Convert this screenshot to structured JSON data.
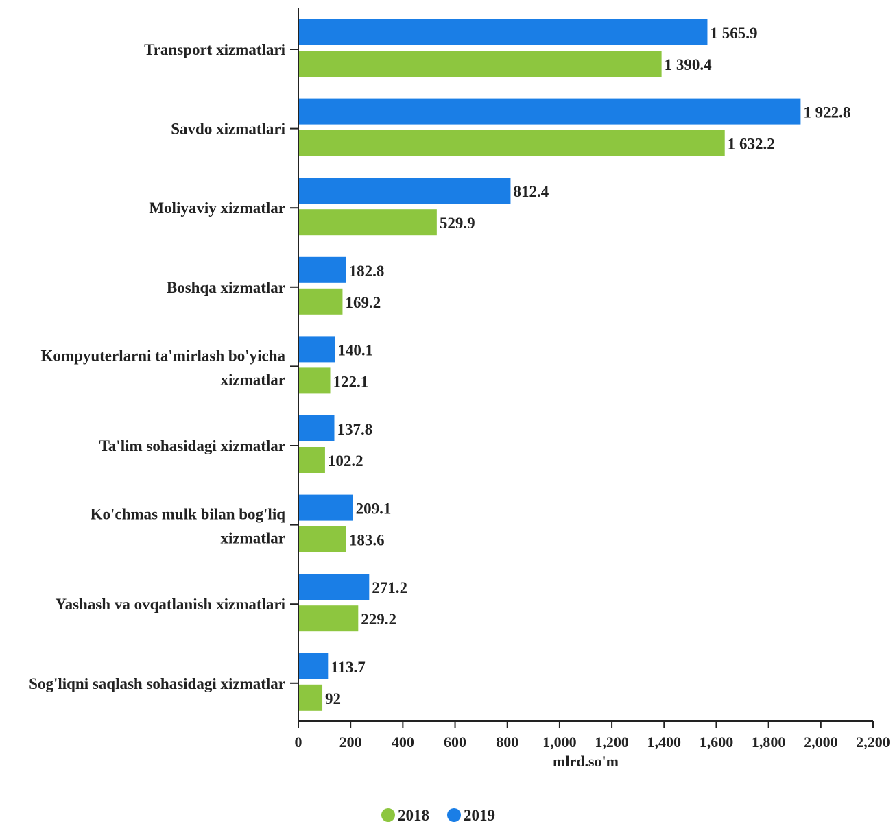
{
  "chart_data": {
    "type": "bar",
    "orientation": "horizontal",
    "categories": [
      [
        "Transport xizmatlari"
      ],
      [
        "Savdo xizmatlari"
      ],
      [
        "Moliyaviy xizmatlar"
      ],
      [
        "Boshqa xizmatlar"
      ],
      [
        "Kompyuterlarni ta'mirlash bo'yicha",
        "xizmatlar"
      ],
      [
        "Ta'lim sohasidagi xizmatlar"
      ],
      [
        "Ko'chmas mulk bilan bog'liq",
        "xizmatlar"
      ],
      [
        "Yashash va ovqatlanish xizmatlari"
      ],
      [
        "Sog'liqni saqlash sohasidagi xizmatlar"
      ]
    ],
    "series": [
      {
        "name": "2019",
        "color": "#1a7ee6",
        "values": [
          1565.9,
          1922.8,
          812.4,
          182.8,
          140.1,
          137.8,
          209.1,
          271.2,
          113.7
        ],
        "labels": [
          "1 565.9",
          "1 922.8",
          "812.4",
          "182.8",
          "140.1",
          "137.8",
          "209.1",
          "271.2",
          "113.7"
        ]
      },
      {
        "name": "2018",
        "color": "#8dc63f",
        "values": [
          1390.4,
          1632.2,
          529.9,
          169.2,
          122.1,
          102.2,
          183.6,
          229.2,
          92
        ],
        "labels": [
          "1 390.4",
          "1 632.2",
          "529.9",
          "169.2",
          "122.1",
          "102.2",
          "183.6",
          "229.2",
          "92"
        ]
      }
    ],
    "xlabel": "mlrd.so'm",
    "ylabel": "",
    "xlim": [
      0,
      2200
    ],
    "xticks": [
      0,
      200,
      400,
      600,
      800,
      1000,
      1200,
      1400,
      1600,
      1800,
      2000,
      2200
    ],
    "xtick_labels": [
      "0",
      "200",
      "400",
      "600",
      "800",
      "1,000",
      "1,200",
      "1,400",
      "1,600",
      "1,800",
      "2,000",
      "2,200"
    ],
    "grid": false,
    "legend": {
      "placement": "bottom-center",
      "items": [
        {
          "label": "2018",
          "color": "#8dc63f"
        },
        {
          "label": "2019",
          "color": "#1a7ee6"
        }
      ]
    }
  }
}
